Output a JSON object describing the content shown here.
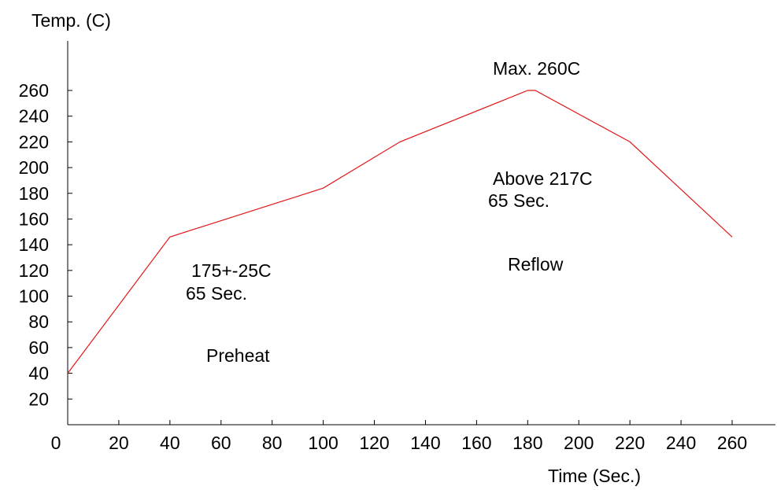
{
  "chart_data": {
    "type": "line",
    "xlabel": "Time (Sec.)",
    "ylabel": "Temp. (C)",
    "xlim": [
      0,
      260
    ],
    "ylim": [
      0,
      280
    ],
    "grid": false,
    "x_ticks": [
      "0",
      "20",
      "40",
      "60",
      "80",
      "100",
      "120",
      "140",
      "160",
      "180",
      "200",
      "220",
      "240",
      "260"
    ],
    "y_ticks": [
      "20",
      "40",
      "60",
      "80",
      "100",
      "120",
      "140",
      "160",
      "180",
      "200",
      "220",
      "240",
      "260"
    ],
    "series": [
      {
        "color": "#e0191b",
        "x": [
          0,
          40,
          100,
          130,
          180,
          183,
          220,
          260
        ],
        "y": [
          40,
          146,
          184,
          220,
          260,
          260,
          220,
          146
        ]
      }
    ],
    "annotations": [
      {
        "text": "Max. 260C"
      },
      {
        "text": "Above 217C"
      },
      {
        "text": "65 Sec."
      },
      {
        "text": "Reflow"
      },
      {
        "text": "175+-25C"
      },
      {
        "text": "65 Sec."
      },
      {
        "text": "Preheat"
      }
    ]
  }
}
